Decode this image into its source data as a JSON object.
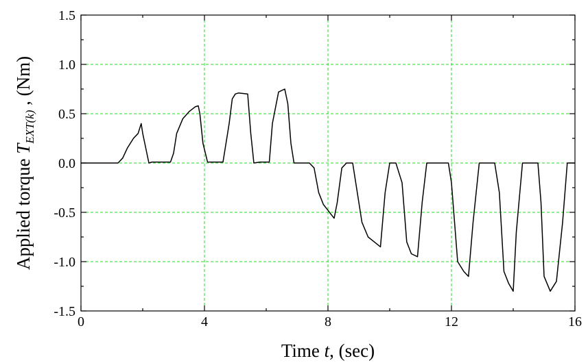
{
  "chart_data": {
    "type": "line",
    "title": "",
    "xlabel": {
      "prefix": "Time ",
      "var": "t",
      "suffix": ", (sec)"
    },
    "ylabel": {
      "prefix": "Applied torque ",
      "var": "T",
      "sub": "EXT(k)",
      "suffix": " , (Nm)"
    },
    "xlim": [
      0,
      16
    ],
    "ylim": [
      -1.5,
      1.5
    ],
    "x_ticks": [
      0,
      4,
      8,
      12,
      16
    ],
    "x_tick_labels": [
      "0",
      "4",
      "8",
      "12",
      "16"
    ],
    "x_minor_step": 2,
    "y_ticks": [
      -1.5,
      -1.0,
      -0.5,
      0.0,
      0.5,
      1.0,
      1.5
    ],
    "y_tick_labels": [
      "-1.5",
      "-1.0",
      "-0.5",
      "0.0",
      "0.5",
      "1.0",
      "1.5"
    ],
    "y_minor_step": 0.25,
    "grid": true,
    "legend": "none",
    "colors": {
      "line": "#000000",
      "grid": "#22dd22"
    },
    "series": [
      {
        "x": [
          0,
          1.2,
          1.35,
          1.5,
          1.7,
          1.85,
          1.95,
          2.0,
          2.1,
          2.2,
          2.3,
          2.6,
          2.9,
          3.0,
          3.1,
          3.3,
          3.5,
          3.7,
          3.8,
          3.85,
          3.95,
          4.1,
          4.2,
          4.4,
          4.6,
          4.8,
          4.9,
          5.0,
          5.1,
          5.4,
          5.5,
          5.6,
          5.8,
          6.1,
          6.2,
          6.4,
          6.6,
          6.7,
          6.8,
          6.9,
          7.4,
          7.55,
          7.7,
          7.85,
          8.0,
          8.1,
          8.2,
          8.3,
          8.45,
          8.6,
          8.8,
          8.9,
          9.1,
          9.3,
          9.5,
          9.7,
          9.85,
          10.0,
          10.2,
          10.4,
          10.55,
          10.7,
          10.9,
          11.05,
          11.2,
          11.4,
          11.6,
          11.9,
          12.0,
          12.2,
          12.4,
          12.55,
          12.7,
          12.9,
          13.1,
          13.4,
          13.55,
          13.7,
          13.85,
          14.0,
          14.1,
          14.3,
          14.5,
          14.8,
          14.9,
          15.0,
          15.2,
          15.4,
          15.6,
          15.75,
          15.9,
          16.0
        ],
        "y": [
          0.0,
          0.0,
          0.05,
          0.15,
          0.25,
          0.3,
          0.4,
          0.3,
          0.15,
          0.0,
          0.01,
          0.01,
          0.01,
          0.1,
          0.3,
          0.45,
          0.52,
          0.57,
          0.58,
          0.5,
          0.2,
          0.01,
          0.01,
          0.01,
          0.01,
          0.4,
          0.65,
          0.7,
          0.71,
          0.7,
          0.3,
          0.0,
          0.01,
          0.01,
          0.4,
          0.72,
          0.75,
          0.6,
          0.2,
          0.0,
          0.0,
          -0.05,
          -0.3,
          -0.42,
          -0.48,
          -0.52,
          -0.56,
          -0.4,
          -0.05,
          0.0,
          0.0,
          -0.2,
          -0.6,
          -0.75,
          -0.8,
          -0.85,
          -0.3,
          0.0,
          0.0,
          -0.2,
          -0.8,
          -0.92,
          -0.95,
          -0.4,
          0.0,
          0.0,
          0.0,
          0.0,
          -0.2,
          -1.0,
          -1.1,
          -1.15,
          -0.6,
          0.0,
          0.0,
          0.0,
          -0.3,
          -1.1,
          -1.22,
          -1.3,
          -0.7,
          0.0,
          0.0,
          0.0,
          -0.4,
          -1.15,
          -1.3,
          -1.2,
          -0.6,
          0.0,
          0.0,
          0.0
        ]
      }
    ]
  }
}
